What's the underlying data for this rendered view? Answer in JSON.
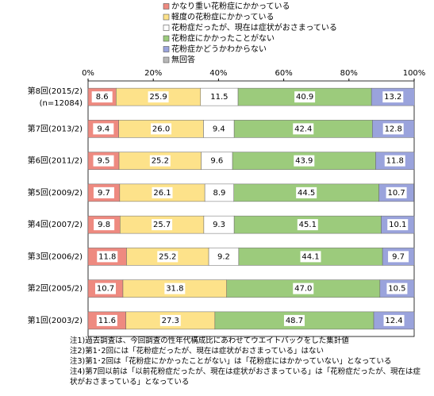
{
  "chart_data": {
    "type": "stacked-bar-horizontal",
    "categories": [
      "第8回(2015/2)",
      "第7回(2013/2)",
      "第6回(2011/2)",
      "第5回(2009/2)",
      "第4回(2007/2)",
      "第3回(2006/2)",
      "第2回(2005/2)",
      "第1回(2003/2)"
    ],
    "sample_note": "(n=12084)",
    "xlim": [
      0,
      100
    ],
    "xticks": [
      {
        "value": 0,
        "label": "0%"
      },
      {
        "value": 20,
        "label": "20%"
      },
      {
        "value": 40,
        "label": "40%"
      },
      {
        "value": 60,
        "label": "60%"
      },
      {
        "value": 80,
        "label": "80%"
      },
      {
        "value": 100,
        "label": "100%"
      }
    ],
    "series": [
      {
        "name": "かなり重い花粉症にかかっている",
        "color": "#ee8a80",
        "values": [
          8.6,
          9.4,
          9.5,
          9.7,
          9.8,
          11.8,
          10.7,
          11.6
        ],
        "value_labels": [
          "8.6",
          "9.4",
          "9.5",
          "9.7",
          "9.8",
          "11.8",
          "10.7",
          "11.6"
        ]
      },
      {
        "name": "軽度の花粉症にかかっている",
        "color": "#fde28a",
        "values": [
          25.9,
          26,
          25.2,
          26.1,
          25.7,
          25.2,
          31.8,
          27.3
        ],
        "value_labels": [
          "25.9",
          "26.0",
          "25.2",
          "26.1",
          "25.7",
          "25.2",
          "31.8",
          "27.3"
        ]
      },
      {
        "name": "花粉症だったが、現在は症状がおさまっている",
        "color": "#ffffff",
        "values": [
          11.5,
          9.4,
          9.6,
          8.9,
          9.3,
          9.2,
          null,
          null
        ],
        "value_labels": [
          "11.5",
          "9.4",
          "9.6",
          "8.9",
          "9.3",
          "9.2",
          null,
          null
        ]
      },
      {
        "name": "花粉症にかかったことがない",
        "color": "#9ccb7c",
        "values": [
          40.9,
          42.4,
          43.9,
          44.5,
          45.1,
          44.1,
          47,
          48.7
        ],
        "value_labels": [
          "40.9",
          "42.4",
          "43.9",
          "44.5",
          "45.1",
          "44.1",
          "47.0",
          "48.7"
        ]
      },
      {
        "name": "花粉症かどうかわからない",
        "color": "#9aa3dc",
        "values": [
          13.2,
          12.8,
          11.8,
          10.7,
          10.1,
          9.7,
          10.5,
          12.4
        ],
        "value_labels": [
          "13.2",
          "12.8",
          "11.8",
          "10.7",
          "10.1",
          "9.7",
          "10.5",
          "12.4"
        ]
      },
      {
        "name": "無回答",
        "color": "#b8b8b8",
        "values": [
          0,
          0,
          0,
          0,
          0,
          0,
          0,
          0
        ]
      }
    ],
    "notes": [
      "注1)過去調査は、今回調査の性年代構成比にあわせてウエイトバックをした集計値",
      "注2)第1･2回には「花粉症だったが、現在は症状がおさまっている」はない",
      "注3)第1･2回は「花粉症にかかったことがない」は「花粉症にはかかっていない」となっている",
      "注4)第7回以前は「以前花粉症だったが、現在は症状がおさまっている」は「花粉症だったが、現在は症状がおさまっている」となっている"
    ]
  }
}
